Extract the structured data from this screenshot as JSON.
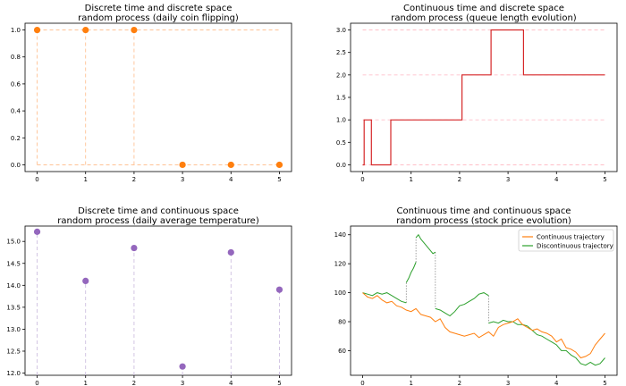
{
  "chart_data": [
    {
      "type": "scatter",
      "title_lines": [
        "Discrete time and discrete space",
        "random process (daily coin flipping)"
      ],
      "x": [
        0,
        1,
        2,
        3,
        4,
        5
      ],
      "y": [
        1,
        1,
        1,
        0,
        0,
        0
      ],
      "xlim": [
        -0.25,
        5.25
      ],
      "ylim": [
        -0.05,
        1.05
      ],
      "xticks": [
        "0",
        "1",
        "2",
        "3",
        "4",
        "5"
      ],
      "yticks": [
        "0.0",
        "0.2",
        "0.4",
        "0.6",
        "0.8",
        "1.0"
      ],
      "color": "#ff7f0e",
      "guide_color": "#ffbb88",
      "grid": false
    },
    {
      "type": "line",
      "title_lines": [
        "Continuous time and discrete space",
        "random process (queue length evolution)"
      ],
      "x": [
        0,
        0.03,
        0.03,
        0.18,
        0.18,
        0.58,
        0.58,
        2.05,
        2.05,
        2.65,
        2.65,
        3.32,
        3.32,
        5.0
      ],
      "y": [
        0,
        0,
        1,
        1,
        0,
        0,
        1,
        1,
        2,
        2,
        3,
        3,
        2,
        2
      ],
      "levels": [
        0,
        1,
        2,
        3
      ],
      "xlim": [
        -0.25,
        5.25
      ],
      "ylim": [
        -0.15,
        3.15
      ],
      "xticks": [
        "0",
        "1",
        "2",
        "3",
        "4",
        "5"
      ],
      "yticks": [
        "0.0",
        "0.5",
        "1.0",
        "1.5",
        "2.0",
        "2.5",
        "3.0"
      ],
      "color": "#d62728",
      "guide_color": "#ffb6c1",
      "grid": false
    },
    {
      "type": "scatter",
      "title_lines": [
        "Discrete time and continuous space",
        "random process (daily average temperature)"
      ],
      "x": [
        0,
        1,
        2,
        3,
        4,
        5
      ],
      "y": [
        15.22,
        14.1,
        14.85,
        12.15,
        14.75,
        13.9
      ],
      "xlim": [
        -0.25,
        5.25
      ],
      "ylim": [
        11.95,
        15.35
      ],
      "xticks": [
        "0",
        "1",
        "2",
        "3",
        "4",
        "5"
      ],
      "yticks": [
        "12.0",
        "12.5",
        "13.0",
        "13.5",
        "14.0",
        "14.5",
        "15.0"
      ],
      "color": "#9467bd",
      "guide_color": "#c9b8dd",
      "grid": false
    },
    {
      "type": "line",
      "title_lines": [
        "Continuous time and continuous space",
        "random process (stock price evolution)"
      ],
      "xlim": [
        -0.25,
        5.25
      ],
      "ylim": [
        43,
        146
      ],
      "xticks": [
        "0",
        "1",
        "2",
        "3",
        "4",
        "5"
      ],
      "yticks": [
        "60",
        "80",
        "100",
        "120",
        "140"
      ],
      "legend_position": "top-right",
      "grid": false,
      "series": [
        {
          "name": "Continuous trajectory",
          "color": "#ff7f0e",
          "x": [
            0,
            0.1,
            0.2,
            0.3,
            0.4,
            0.5,
            0.6,
            0.7,
            0.8,
            0.9,
            1.0,
            1.1,
            1.2,
            1.3,
            1.4,
            1.5,
            1.6,
            1.7,
            1.8,
            1.9,
            2.0,
            2.1,
            2.2,
            2.3,
            2.4,
            2.5,
            2.6,
            2.7,
            2.8,
            2.9,
            3.0,
            3.1,
            3.2,
            3.3,
            3.4,
            3.5,
            3.6,
            3.7,
            3.8,
            3.9,
            4.0,
            4.1,
            4.2,
            4.3,
            4.4,
            4.5,
            4.6,
            4.7,
            4.8,
            4.9,
            5.0
          ],
          "y": [
            100,
            97,
            96,
            98,
            95,
            93,
            94,
            91,
            90,
            88,
            87,
            89,
            85,
            84,
            83,
            80,
            82,
            76,
            73,
            72,
            71,
            70,
            71,
            72,
            69,
            71,
            73,
            70,
            76,
            78,
            79,
            80,
            82,
            78,
            76,
            74,
            75,
            73,
            72,
            70,
            66,
            68,
            62,
            61,
            59,
            55,
            56,
            58,
            64,
            68,
            72
          ]
        },
        {
          "name": "Discontinuous trajectory",
          "color": "#2ca02c",
          "segments": [
            {
              "x": [
                0,
                0.1,
                0.2,
                0.3,
                0.4,
                0.5,
                0.6,
                0.7,
                0.8,
                0.9
              ],
              "y": [
                100,
                99,
                98,
                100,
                99,
                100,
                98,
                96,
                94,
                93
              ]
            },
            {
              "x": [
                0.9,
                0.95,
                1.0,
                1.05,
                1.1
              ],
              "y": [
                107,
                110,
                114,
                117,
                121
              ]
            },
            {
              "x": [
                1.1,
                1.15,
                1.2,
                1.25,
                1.3,
                1.35,
                1.4,
                1.45,
                1.5
              ],
              "y": [
                138,
                140,
                137,
                135,
                133,
                131,
                129,
                127,
                128
              ]
            },
            {
              "x": [
                1.5,
                1.6,
                1.7,
                1.8,
                1.9,
                2.0,
                2.1,
                2.2,
                2.3,
                2.4,
                2.5,
                2.6
              ],
              "y": [
                89,
                88,
                86,
                84,
                87,
                91,
                92,
                94,
                96,
                99,
                100,
                98
              ]
            },
            {
              "x": [
                2.6,
                2.7,
                2.8,
                2.9,
                3.0,
                3.1,
                3.2,
                3.3,
                3.4,
                3.5,
                3.6,
                3.7,
                3.8,
                3.9,
                4.0,
                4.1,
                4.2,
                4.3,
                4.4,
                4.5,
                4.6,
                4.7,
                4.8,
                4.9,
                5.0
              ],
              "y": [
                79,
                80,
                79,
                81,
                80,
                80,
                78,
                78,
                77,
                74,
                71,
                70,
                68,
                66,
                64,
                60,
                60,
                57,
                55,
                51,
                50,
                52,
                50,
                51,
                55
              ]
            }
          ],
          "jumps": [
            [
              0.9,
              93,
              107
            ],
            [
              1.1,
              121,
              138
            ],
            [
              1.5,
              128,
              89
            ],
            [
              2.6,
              98,
              79
            ]
          ]
        }
      ]
    }
  ]
}
